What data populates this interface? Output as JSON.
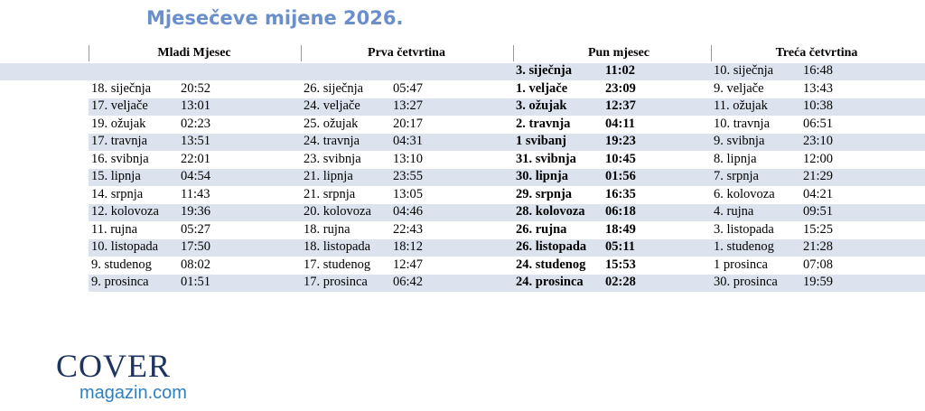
{
  "header": {
    "title": "Mjesečeve mijene 2026."
  },
  "table": {
    "columns": [
      "Mladi Mjesec",
      "Prva četvrtina",
      "Pun mjesec",
      "Treća četvrtina"
    ],
    "rows": [
      [
        null,
        null,
        {
          "date": "3. siječnja",
          "time": "11:02"
        },
        {
          "date": "10. siječnja",
          "time": "16:48"
        }
      ],
      [
        {
          "date": "18. siječnja",
          "time": "20:52"
        },
        {
          "date": "26. siječnja",
          "time": "05:47"
        },
        {
          "date": "1. veljače",
          "time": "23:09"
        },
        {
          "date": "9. veljače",
          "time": "13:43"
        }
      ],
      [
        {
          "date": "17. veljače",
          "time": "13:01"
        },
        {
          "date": "24. veljače",
          "time": "13:27"
        },
        {
          "date": "3. ožujak",
          "time": "12:37"
        },
        {
          "date": "11. ožujak",
          "time": "10:38"
        }
      ],
      [
        {
          "date": "19. ožujak",
          "time": "02:23"
        },
        {
          "date": "25. ožujak",
          "time": "20:17"
        },
        {
          "date": "2. travnja",
          "time": "04:11"
        },
        {
          "date": "10. travnja",
          "time": "06:51"
        }
      ],
      [
        {
          "date": "17. travnja",
          "time": "13:51"
        },
        {
          "date": "24. travnja",
          "time": "04:31"
        },
        {
          "date": "1 svibanj",
          "time": "19:23"
        },
        {
          "date": "9. svibnja",
          "time": "23:10"
        }
      ],
      [
        {
          "date": "16. svibnja",
          "time": "22:01"
        },
        {
          "date": "23. svibnja",
          "time": "13:10"
        },
        {
          "date": "31. svibnja",
          "time": "10:45"
        },
        {
          "date": "8. lipnja",
          "time": "12:00"
        }
      ],
      [
        {
          "date": "15. lipnja",
          "time": "04:54"
        },
        {
          "date": "21. lipnja",
          "time": "23:55"
        },
        {
          "date": "30. lipnja",
          "time": "01:56"
        },
        {
          "date": "7. srpnja",
          "time": "21:29"
        }
      ],
      [
        {
          "date": "14. srpnja",
          "time": "11:43"
        },
        {
          "date": "21. srpnja",
          "time": "13:05"
        },
        {
          "date": "29. srpnja",
          "time": "16:35"
        },
        {
          "date": "6. kolovoza",
          "time": "04:21"
        }
      ],
      [
        {
          "date": "12. kolovoza",
          "time": "19:36"
        },
        {
          "date": "20. kolovoza",
          "time": "04:46"
        },
        {
          "date": "28. kolovoza",
          "time": "06:18"
        },
        {
          "date": "4. rujna",
          "time": "09:51"
        }
      ],
      [
        {
          "date": "11. rujna",
          "time": "05:27"
        },
        {
          "date": "18. rujna",
          "time": "22:43"
        },
        {
          "date": "26. rujna",
          "time": "18:49"
        },
        {
          "date": "3. listopada",
          "time": "15:25"
        }
      ],
      [
        {
          "date": "10. listopada",
          "time": "17:50"
        },
        {
          "date": "18. listopada",
          "time": "18:12"
        },
        {
          "date": "26. listopada",
          "time": "05:11"
        },
        {
          "date": "1. studenog",
          "time": "21:28"
        }
      ],
      [
        {
          "date": "9. studenog",
          "time": "08:02"
        },
        {
          "date": "17. studenog",
          "time": "12:47"
        },
        {
          "date": "24. studenog",
          "time": "15:53"
        },
        {
          "date": "1 prosinca",
          "time": "07:08"
        }
      ],
      [
        {
          "date": "9. prosinca",
          "time": "01:51"
        },
        {
          "date": "17. prosinca",
          "time": "06:42"
        },
        {
          "date": "24. prosinca",
          "time": "02:28"
        },
        {
          "date": "30. prosinca",
          "time": "19:59"
        }
      ]
    ]
  },
  "logo": {
    "name": "COVER",
    "site": "magazin.com"
  }
}
